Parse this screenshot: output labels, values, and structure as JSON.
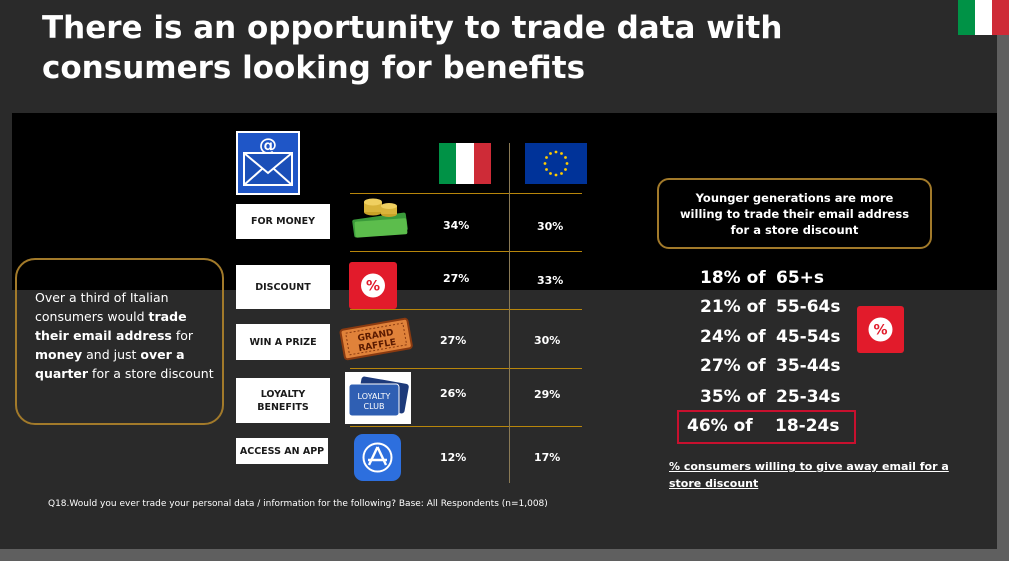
{
  "title": "There is an opportunity to trade data with consumers looking for benefits",
  "flags": {
    "italy": "italy-flag",
    "eu": "eu-flag"
  },
  "categories": [
    {
      "label": "FOR MONEY",
      "icon": "money-icon",
      "italy": "34%",
      "eu": "30%"
    },
    {
      "label": "DISCOUNT",
      "icon": "percent-icon",
      "italy": "27%",
      "eu": "33%"
    },
    {
      "label": "WIN A PRIZE",
      "icon": "raffle-ticket-icon",
      "icon_text": "GRAND RAFFLE",
      "italy": "27%",
      "eu": "30%"
    },
    {
      "label": "LOYALTY BENEFITS",
      "label_lines": [
        "LOYALTY",
        "BENEFITS"
      ],
      "icon": "loyalty-card-icon",
      "icon_text": [
        "LOYALTY",
        "CLUB"
      ],
      "italy": "26%",
      "eu": "29%"
    },
    {
      "label": "ACCESS AN APP",
      "icon": "app-store-icon",
      "italy": "12%",
      "eu": "17%"
    }
  ],
  "left_callout": {
    "parts": [
      {
        "text": "Over a third of Italian consumers would ",
        "bold": false
      },
      {
        "text": "trade their email address",
        "bold": true
      },
      {
        "text": " for ",
        "bold": false
      },
      {
        "text": "money",
        "bold": true
      },
      {
        "text": " and just ",
        "bold": false
      },
      {
        "text": "over a quarter",
        "bold": true
      },
      {
        "text": " for a store discount",
        "bold": false
      }
    ]
  },
  "right_callout": "Younger generations are more willing to trade their email address for a store discount",
  "age_groups": [
    {
      "pct": "18% of",
      "age": "65+s"
    },
    {
      "pct": "21% of",
      "age": "55-64s"
    },
    {
      "pct": "24% of",
      "age": "45-54s"
    },
    {
      "pct": "27% of",
      "age": "35-44s"
    },
    {
      "pct": "35% of",
      "age": "25-34s"
    },
    {
      "pct": "46% of",
      "age": "18-24s",
      "highlighted": true
    }
  ],
  "age_note": "% consumers willing to give away email for a store discount",
  "question": "Q18.Would you ever trade your personal data / information for the following? Base: All Respondents (n=1,008)",
  "colors": {
    "accent_gold": "#a27a2a",
    "badge_red": "#e21b2b",
    "highlight_red": "#c8102e"
  }
}
